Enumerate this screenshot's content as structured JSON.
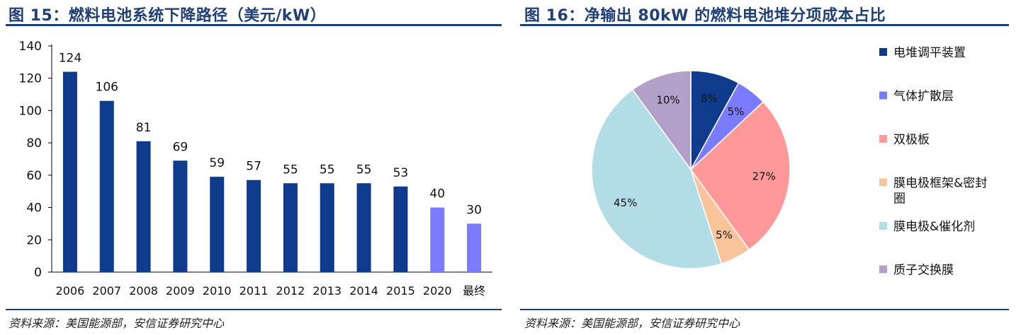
{
  "left_figure": {
    "title": "图 15：燃料电池系统下降路径（美元/kW）",
    "source": "资料来源：美国能源部，安信证券研究中心"
  },
  "right_figure": {
    "title": "图 16：净输出 80kW 的燃料电池堆分项成本占比",
    "source": "资料来源：美国能源部，安信证券研究中心"
  },
  "colors": {
    "title": "#1f3f75",
    "actual_bar": "#0f3b8c",
    "target_bar": "#7b7bff",
    "axis": "#000000"
  },
  "chart_data": [
    {
      "type": "bar",
      "title": "燃料电池系统下降路径（美元/kW）",
      "categories": [
        "2006",
        "2007",
        "2008",
        "2009",
        "2010",
        "2011",
        "2012",
        "2013",
        "2014",
        "2015",
        "2020",
        "最终"
      ],
      "values": [
        124,
        106,
        81,
        69,
        59,
        57,
        55,
        55,
        55,
        53,
        40,
        30
      ],
      "highlighted_categories": [
        "2020",
        "最终"
      ],
      "ylim": [
        0,
        140
      ],
      "yticks": [
        0,
        20,
        40,
        60,
        80,
        100,
        120,
        140
      ],
      "xlabel": "",
      "ylabel": "",
      "grid": false
    },
    {
      "type": "pie",
      "title": "净输出 80kW 的燃料电池堆分项成本占比",
      "slices": [
        {
          "label": "电堆调平装置",
          "value": 8,
          "display": "8%",
          "color": "#0f3b8c",
          "legend_lines": [
            "电堆调平装置"
          ]
        },
        {
          "label": "气体扩散层",
          "value": 5,
          "display": "5%",
          "color": "#7b7bff",
          "legend_lines": [
            "气体扩散层"
          ]
        },
        {
          "label": "双极板",
          "value": 27,
          "display": "27%",
          "color": "#ff9999",
          "legend_lines": [
            "双极板"
          ]
        },
        {
          "label": "膜电极框架&密封圈",
          "value": 5,
          "display": "5%",
          "color": "#f9c499",
          "legend_lines": [
            "膜电极框架&密封",
            "圈"
          ]
        },
        {
          "label": "膜电极&催化剂",
          "value": 45,
          "display": "45%",
          "color": "#b3dde6",
          "legend_lines": [
            "膜电极&催化剂"
          ]
        },
        {
          "label": "质子交换膜",
          "value": 10,
          "display": "10%",
          "color": "#b3a0c8",
          "legend_lines": [
            "质子交换膜"
          ]
        }
      ],
      "legend_position": "right"
    }
  ]
}
